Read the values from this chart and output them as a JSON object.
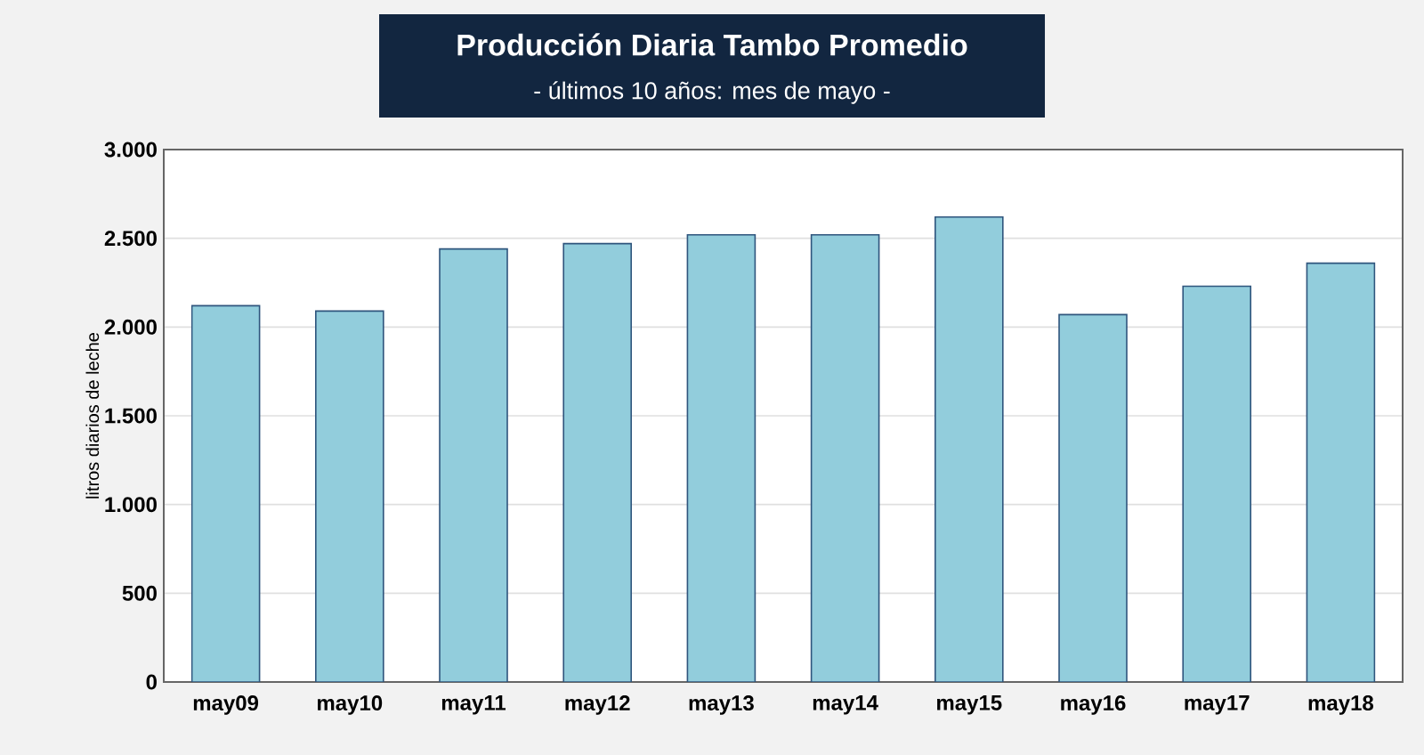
{
  "chart_data": {
    "type": "bar",
    "title": "Producción Diaria Tambo Promedio",
    "subtitle": "- últimos 10 años: mes de mayo -",
    "ylabel": "litros diarios de leche",
    "categories": [
      "may09",
      "may10",
      "may11",
      "may12",
      "may13",
      "may14",
      "may15",
      "may16",
      "may17",
      "may18"
    ],
    "values": [
      2120,
      2090,
      2440,
      2470,
      2520,
      2520,
      2620,
      2070,
      2230,
      2360
    ],
    "color": "#92cddc",
    "ylim": [
      0,
      3000
    ],
    "yticks": [
      {
        "value": 0,
        "label": "0"
      },
      {
        "value": 500,
        "label": "500"
      },
      {
        "value": 1000,
        "label": "1.000"
      },
      {
        "value": 1500,
        "label": "1.500"
      },
      {
        "value": 2000,
        "label": "2.000"
      },
      {
        "value": 2500,
        "label": "2.500"
      },
      {
        "value": 3000,
        "label": "3.000"
      }
    ],
    "grid": "y"
  }
}
